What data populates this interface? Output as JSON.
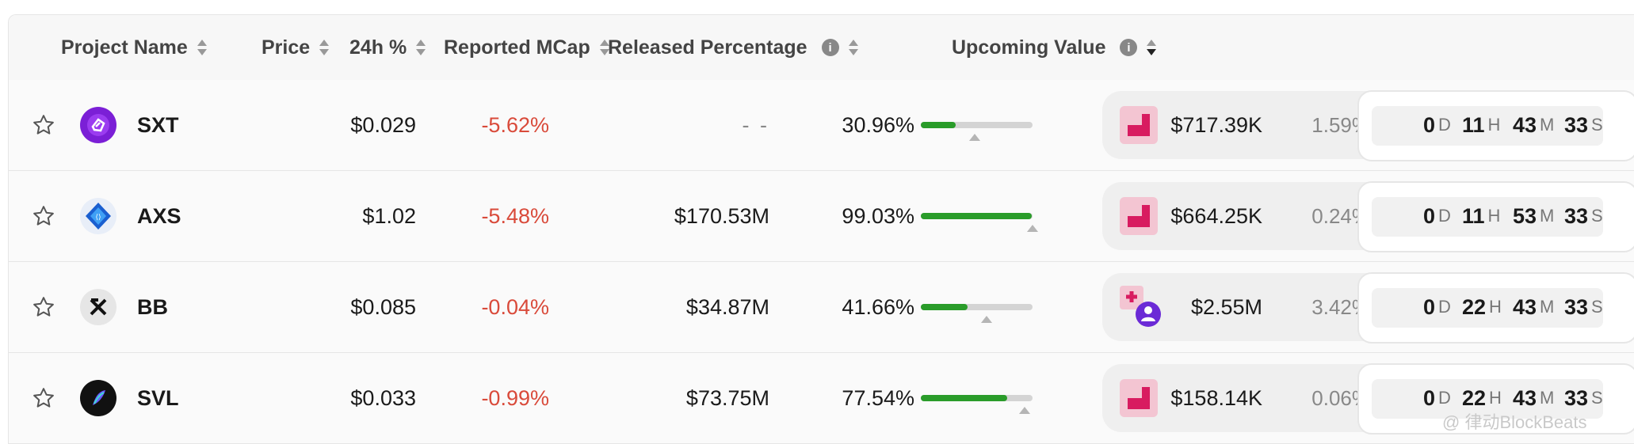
{
  "headers": {
    "project_name": "Project Name",
    "price": "Price",
    "change_24h": "24h %",
    "reported_mcap": "Reported MCap",
    "released_percentage": "Released Percentage",
    "upcoming_value": "Upcoming Value",
    "info_glyph": "i"
  },
  "rows": [
    {
      "name": "SXT",
      "price": "$0.029",
      "change": "-5.62%",
      "mcap": "- -",
      "released": "30.96%",
      "released_fraction": 0.3096,
      "upcoming_value": "$717.39K",
      "upcoming_pct": "1.59%",
      "days": "0",
      "hours": "11",
      "minutes": "43",
      "seconds": "33",
      "logo": "sxt-logo-icon",
      "unlock_icon": "unlock-chart-icon"
    },
    {
      "name": "AXS",
      "price": "$1.02",
      "change": "-5.48%",
      "mcap": "$170.53M",
      "released": "99.03%",
      "released_fraction": 0.9903,
      "upcoming_value": "$664.25K",
      "upcoming_pct": "0.24%",
      "days": "0",
      "hours": "11",
      "minutes": "53",
      "seconds": "33",
      "logo": "axs-logo-icon",
      "unlock_icon": "unlock-chart-icon"
    },
    {
      "name": "BB",
      "price": "$0.085",
      "change": "-0.04%",
      "mcap": "$34.87M",
      "released": "41.66%",
      "released_fraction": 0.4166,
      "upcoming_value": "$2.55M",
      "upcoming_pct": "3.42%",
      "days": "0",
      "hours": "22",
      "minutes": "43",
      "seconds": "33",
      "logo": "bb-logo-icon",
      "unlock_icon": "multi-unlock-icon"
    },
    {
      "name": "SVL",
      "price": "$0.033",
      "change": "-0.99%",
      "mcap": "$73.75M",
      "released": "77.54%",
      "released_fraction": 0.7754,
      "upcoming_value": "$158.14K",
      "upcoming_pct": "0.06%",
      "days": "0",
      "hours": "22",
      "minutes": "43",
      "seconds": "33",
      "logo": "svl-logo-icon",
      "unlock_icon": "unlock-chart-icon"
    }
  ],
  "units": {
    "d": "D",
    "h": "H",
    "m": "M",
    "s": "S"
  },
  "watermark": "@ 律动BlockBeats",
  "colors": {
    "negative": "#d94a3a",
    "progress": "#2a9c2a",
    "unlock_accent": "#d81b60",
    "unlock_bg": "#f3c5d2"
  }
}
